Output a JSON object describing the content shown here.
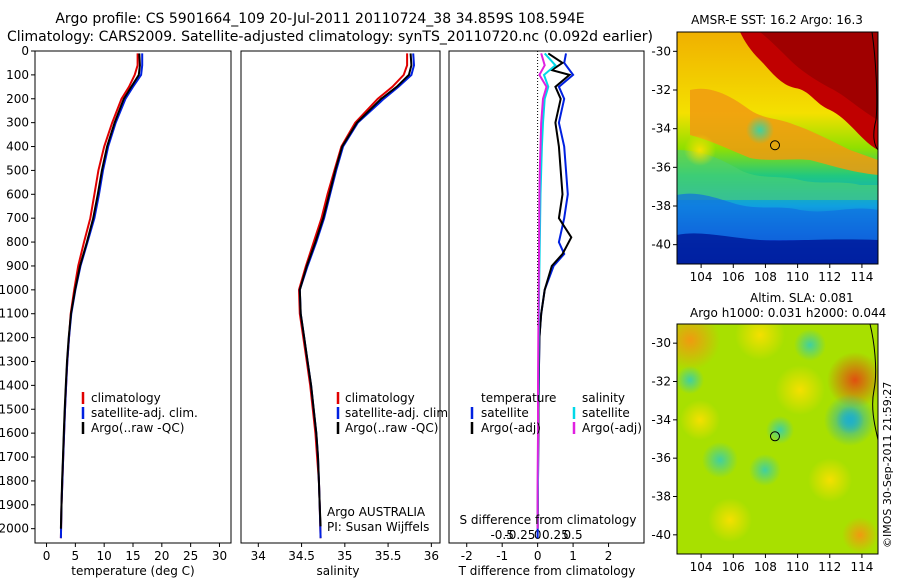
{
  "figure": {
    "title_line1": "Argo profile: CS 5901664_109 20-Jul-2011 20110724_38 34.859S 108.594E",
    "title_line2": "Climatology: CARS2009. Satellite-adjusted climatology: synTS_20110720.nc (0.092d earlier)",
    "watermark": "©IMOS 30-Sep-2011 21:59:27",
    "argo_label": "Argo AUSTRALIA",
    "pi_label": "PI: Susan Wijffels"
  },
  "colors": {
    "climatology": "#e00000",
    "satellite": "#0020e0",
    "argo": "#000000",
    "s_satellite": "#00d8e8",
    "s_argo": "#e020e0"
  },
  "chart_data": [
    {
      "type": "line",
      "id": "temperature",
      "xlabel": "temperature (deg C)",
      "ylabel": "",
      "xlim": [
        -2,
        32
      ],
      "ylim": [
        2060,
        0
      ],
      "xticks": [
        0,
        5,
        10,
        15,
        20,
        25,
        30
      ],
      "yticks": [
        0,
        100,
        200,
        300,
        400,
        500,
        600,
        700,
        800,
        900,
        1000,
        1100,
        1200,
        1300,
        1400,
        1500,
        1600,
        1700,
        1800,
        1900,
        2000
      ],
      "legend": [
        "climatology",
        "satellite-adj. clim.",
        "Argo(..raw -QC)"
      ],
      "series": [
        {
          "name": "climatology",
          "color": "#e00000",
          "depth": [
            10,
            60,
            100,
            150,
            200,
            300,
            400,
            500,
            600,
            700,
            800,
            900,
            1000,
            1100,
            1200,
            1300,
            1400,
            1500,
            1600,
            1700,
            1800,
            1900,
            2040
          ],
          "values": [
            15.8,
            15.8,
            15.3,
            14.3,
            13.0,
            11.4,
            10.0,
            9.0,
            8.3,
            7.6,
            6.5,
            5.5,
            4.8,
            4.2,
            3.9,
            3.6,
            3.4,
            3.2,
            3.05,
            2.9,
            2.75,
            2.6,
            2.5
          ]
        },
        {
          "name": "satellite-adj. clim.",
          "color": "#0020e0",
          "depth": [
            10,
            60,
            100,
            150,
            200,
            300,
            400,
            500,
            600,
            700,
            800,
            900,
            1000,
            1100,
            1200,
            1300,
            1400,
            1500,
            1600,
            1700,
            1800,
            1900,
            2040
          ],
          "values": [
            16.6,
            16.6,
            16.4,
            15.0,
            13.7,
            12.0,
            10.7,
            9.8,
            9.1,
            8.3,
            7.1,
            5.9,
            5.0,
            4.3,
            3.9,
            3.6,
            3.4,
            3.2,
            3.05,
            2.9,
            2.75,
            2.6,
            2.5
          ]
        },
        {
          "name": "Argo(..raw -QC)",
          "color": "#000000",
          "depth": [
            10,
            60,
            100,
            150,
            200,
            300,
            400,
            500,
            600,
            700,
            800,
            900,
            1000,
            1100,
            1200,
            1300,
            1400,
            1500,
            1600,
            1700,
            1800,
            1900,
            2000
          ],
          "values": [
            16.1,
            16.2,
            16.0,
            14.7,
            13.4,
            11.8,
            10.5,
            9.6,
            8.9,
            8.1,
            7.0,
            5.8,
            4.95,
            4.25,
            3.85,
            3.55,
            3.35,
            3.15,
            3.0,
            2.85,
            2.7,
            2.6,
            2.5
          ]
        }
      ]
    },
    {
      "type": "line",
      "id": "salinity",
      "xlabel": "salinity",
      "ylabel": "",
      "xlim": [
        33.8,
        36.1
      ],
      "ylim": [
        2060,
        0
      ],
      "xticks": [
        34,
        34.5,
        35,
        35.5,
        36
      ],
      "legend": [
        "climatology",
        "satellite-adj. clim.",
        "Argo(..raw -QC)"
      ],
      "series": [
        {
          "name": "climatology",
          "color": "#e00000",
          "depth": [
            10,
            60,
            100,
            150,
            200,
            300,
            400,
            500,
            600,
            700,
            800,
            900,
            1000,
            1100,
            1200,
            1300,
            1400,
            1500,
            1600,
            1700,
            1800,
            1900,
            2040
          ],
          "values": [
            35.72,
            35.72,
            35.68,
            35.55,
            35.38,
            35.12,
            34.96,
            34.88,
            34.8,
            34.73,
            34.64,
            34.55,
            34.47,
            34.48,
            34.52,
            34.56,
            34.6,
            34.63,
            34.66,
            34.68,
            34.7,
            34.71,
            34.72
          ]
        },
        {
          "name": "satellite-adj. clim.",
          "color": "#0020e0",
          "depth": [
            10,
            60,
            100,
            150,
            200,
            300,
            400,
            500,
            600,
            700,
            800,
            900,
            1000,
            1100,
            1200,
            1300,
            1400,
            1500,
            1600,
            1700,
            1800,
            1900,
            2040
          ],
          "values": [
            35.79,
            35.8,
            35.77,
            35.62,
            35.45,
            35.15,
            34.98,
            34.9,
            34.83,
            34.76,
            34.67,
            34.57,
            34.48,
            34.49,
            34.53,
            34.57,
            34.61,
            34.64,
            34.67,
            34.69,
            34.7,
            34.71,
            34.72
          ]
        },
        {
          "name": "Argo(..raw -QC)",
          "color": "#000000",
          "depth": [
            10,
            60,
            100,
            150,
            200,
            300,
            400,
            500,
            600,
            700,
            800,
            900,
            1000,
            1100,
            1200,
            1300,
            1400,
            1500,
            1600,
            1700,
            1800,
            1900,
            1990
          ],
          "values": [
            35.76,
            35.77,
            35.74,
            35.6,
            35.42,
            35.14,
            34.97,
            34.89,
            34.82,
            34.75,
            34.66,
            34.56,
            34.48,
            34.49,
            34.53,
            34.57,
            34.61,
            34.64,
            34.67,
            34.69,
            34.7,
            34.71,
            34.72
          ]
        }
      ]
    },
    {
      "type": "line",
      "id": "difference",
      "xlabel": "T difference from climatology",
      "top_xlabel": "S difference from climatology",
      "ylabel": "",
      "xlim": [
        -2.5,
        3.0
      ],
      "ylim": [
        2060,
        0
      ],
      "xticks": [
        -2,
        -1,
        0,
        1,
        2
      ],
      "top_xticks": [
        "-0.5",
        "-0.25",
        "0",
        "0.25",
        "0.5"
      ],
      "legend_temperature_title": "temperature",
      "legend_salinity_title": "salinity",
      "legend_temperature": [
        "satellite",
        "Argo(-adj)"
      ],
      "legend_salinity": [
        "satellite",
        "Argo(-adj)"
      ],
      "series": [
        {
          "name": "T satellite",
          "color": "#0020e0",
          "depth": [
            10,
            50,
            100,
            150,
            200,
            300,
            400,
            500,
            600,
            700,
            800,
            850,
            900,
            1000,
            1100,
            1200,
            1400,
            1600,
            1800,
            2040
          ],
          "values": [
            0.8,
            0.75,
            1.0,
            0.6,
            0.75,
            0.6,
            0.75,
            0.8,
            0.85,
            0.75,
            0.6,
            0.75,
            0.45,
            0.2,
            0.1,
            0.05,
            0.03,
            0.02,
            0.01,
            0.0
          ]
        },
        {
          "name": "T Argo(-adj)",
          "color": "#000000",
          "depth": [
            10,
            50,
            80,
            100,
            150,
            200,
            300,
            400,
            500,
            600,
            700,
            780,
            850,
            900,
            1000,
            1100,
            1200,
            1400,
            1600,
            1800,
            2000
          ],
          "values": [
            0.3,
            0.7,
            0.4,
            0.9,
            0.5,
            0.65,
            0.5,
            0.6,
            0.65,
            0.7,
            0.6,
            0.95,
            0.7,
            0.4,
            0.2,
            0.1,
            0.05,
            0.03,
            0.02,
            0.01,
            0.0
          ]
        },
        {
          "name": "S satellite",
          "color": "#00d8e8",
          "depth": [
            10,
            60,
            100,
            150,
            200,
            300,
            400,
            500,
            600,
            800,
            1000,
            1200,
            1400,
            1600,
            1800,
            2000
          ],
          "values": [
            0.2,
            0.5,
            0.18,
            0.3,
            0.2,
            0.15,
            0.12,
            0.1,
            0.08,
            0.06,
            0.04,
            0.03,
            0.02,
            0.01,
            0.01,
            0.0
          ]
        },
        {
          "name": "S Argo(-adj)",
          "color": "#e020e0",
          "depth": [
            10,
            60,
            100,
            150,
            200,
            300,
            400,
            500,
            600,
            800,
            1000,
            1200,
            1400,
            1600,
            1800,
            2000
          ],
          "values": [
            0.1,
            0.2,
            0.05,
            0.25,
            0.15,
            0.1,
            0.08,
            0.06,
            0.05,
            0.04,
            0.03,
            0.02,
            0.01,
            0.01,
            0.0,
            0.0
          ]
        },
        {
          "name": "S climatology",
          "color": "#000000",
          "depth": [
            0,
            1150
          ],
          "values": [
            0,
            0
          ],
          "dotted": true
        }
      ]
    },
    {
      "type": "heatmap",
      "id": "sst_map",
      "title": "AMSR-E SST: 16.2 Argo: 16.3",
      "xlim": [
        102.5,
        115
      ],
      "ylim": [
        -41,
        -29
      ],
      "xticks": [
        104,
        106,
        108,
        110,
        112,
        114
      ],
      "yticks": [
        -30,
        -32,
        -34,
        -36,
        -38,
        -40
      ],
      "argo_position": {
        "lon": 108.594,
        "lat": -34.859
      }
    },
    {
      "type": "heatmap",
      "id": "sla_map",
      "title": "Altim. SLA: 0.081",
      "subtitle": "Argo h1000: 0.031 h2000: 0.044",
      "xlim": [
        102.5,
        115
      ],
      "ylim": [
        -41,
        -29
      ],
      "xticks": [
        104,
        106,
        108,
        110,
        112,
        114
      ],
      "yticks": [
        -30,
        -32,
        -34,
        -36,
        -38,
        -40
      ],
      "argo_position": {
        "lon": 108.594,
        "lat": -34.859
      }
    }
  ]
}
